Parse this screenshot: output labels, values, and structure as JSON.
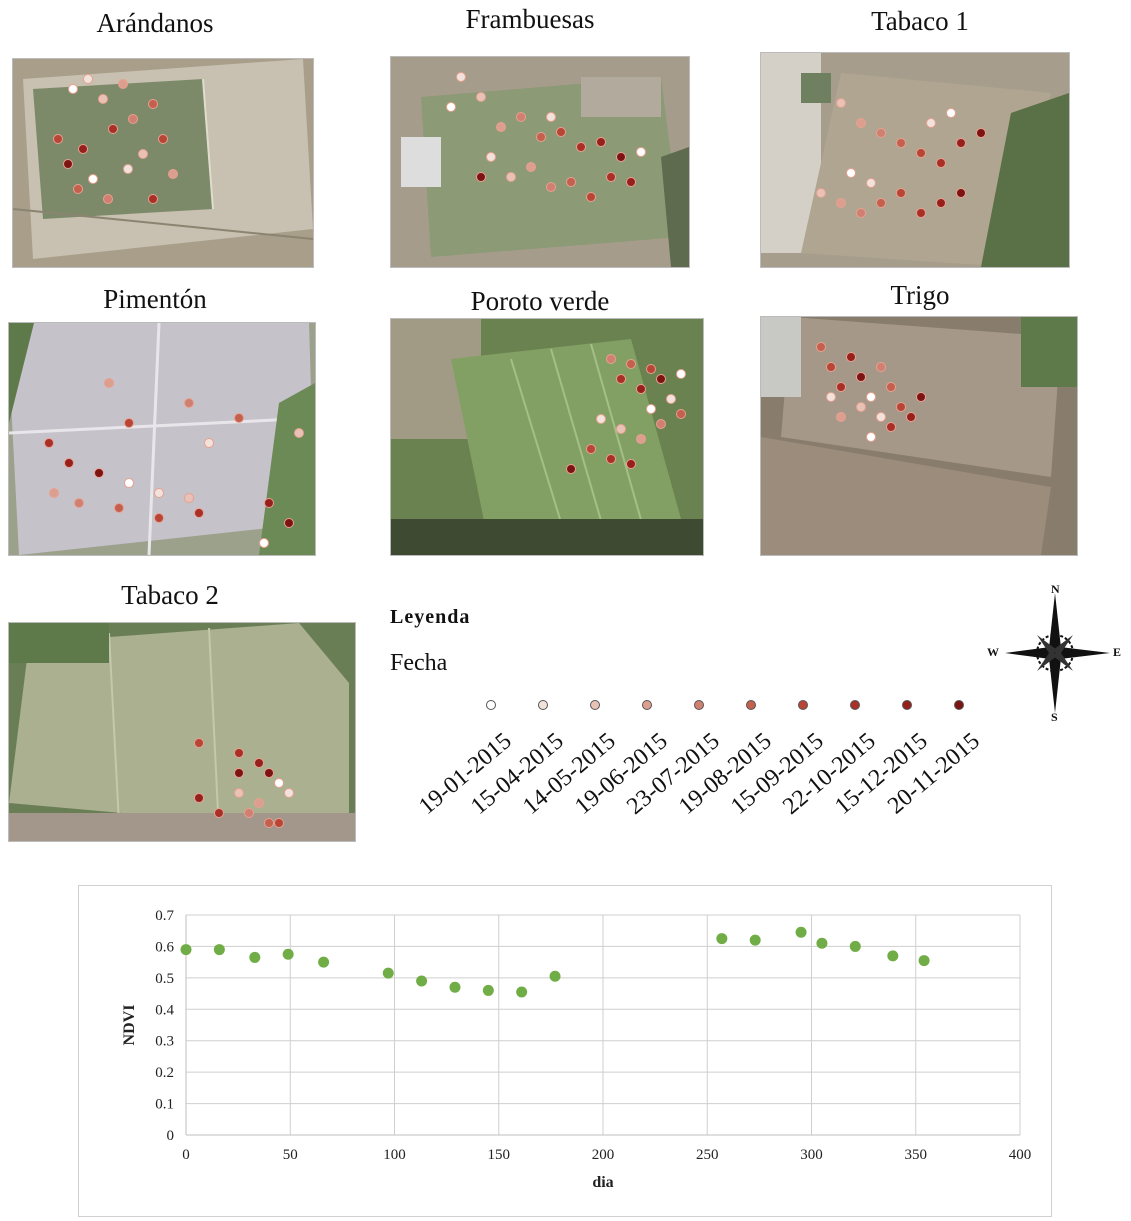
{
  "maps": [
    {
      "title": "Arándanos"
    },
    {
      "title": "Frambuesas"
    },
    {
      "title": "Tabaco 1"
    },
    {
      "title": "Pimentón"
    },
    {
      "title": "Poroto verde"
    },
    {
      "title": "Trigo"
    },
    {
      "title": "Tabaco 2"
    }
  ],
  "legend": {
    "title": "Leyenda",
    "subtitle": "Fecha",
    "dates": [
      "19-01-2015",
      "15-04-2015",
      "14-05-2015",
      "19-06-2015",
      "23-07-2015",
      "19-08-2015",
      "15-09-2015",
      "22-10-2015",
      "15-12-2015",
      "20-11-2015"
    ],
    "colors": [
      "#ffffff",
      "#f1e2dc",
      "#e8c2b6",
      "#dc9f8f",
      "#d08070",
      "#c4604e",
      "#b84637",
      "#a83027",
      "#96201c",
      "#7c1414"
    ]
  },
  "compass": {
    "n": "N",
    "s": "S",
    "e": "E",
    "w": "W"
  },
  "chart_data": {
    "type": "scatter",
    "xlabel": "dia",
    "ylabel": "NDVI",
    "xlim": [
      0,
      400
    ],
    "ylim": [
      0,
      0.7
    ],
    "xticks": [
      "0",
      "50",
      "100",
      "150",
      "200",
      "250",
      "300",
      "350",
      "400"
    ],
    "yticks": [
      "0",
      "0.1",
      "0.2",
      "0.3",
      "0.4",
      "0.5",
      "0.6",
      "0.7"
    ],
    "grid": "vertical and horizontal",
    "marker_color": "#70ad47",
    "points": [
      {
        "x": 0,
        "y": 0.59
      },
      {
        "x": 16,
        "y": 0.59
      },
      {
        "x": 33,
        "y": 0.565
      },
      {
        "x": 49,
        "y": 0.575
      },
      {
        "x": 66,
        "y": 0.55
      },
      {
        "x": 97,
        "y": 0.515
      },
      {
        "x": 113,
        "y": 0.49
      },
      {
        "x": 129,
        "y": 0.47
      },
      {
        "x": 145,
        "y": 0.46
      },
      {
        "x": 161,
        "y": 0.455
      },
      {
        "x": 177,
        "y": 0.505
      },
      {
        "x": 257,
        "y": 0.625
      },
      {
        "x": 273,
        "y": 0.62
      },
      {
        "x": 295,
        "y": 0.645
      },
      {
        "x": 305,
        "y": 0.61
      },
      {
        "x": 321,
        "y": 0.6
      },
      {
        "x": 339,
        "y": 0.57
      },
      {
        "x": 354,
        "y": 0.555
      }
    ]
  }
}
